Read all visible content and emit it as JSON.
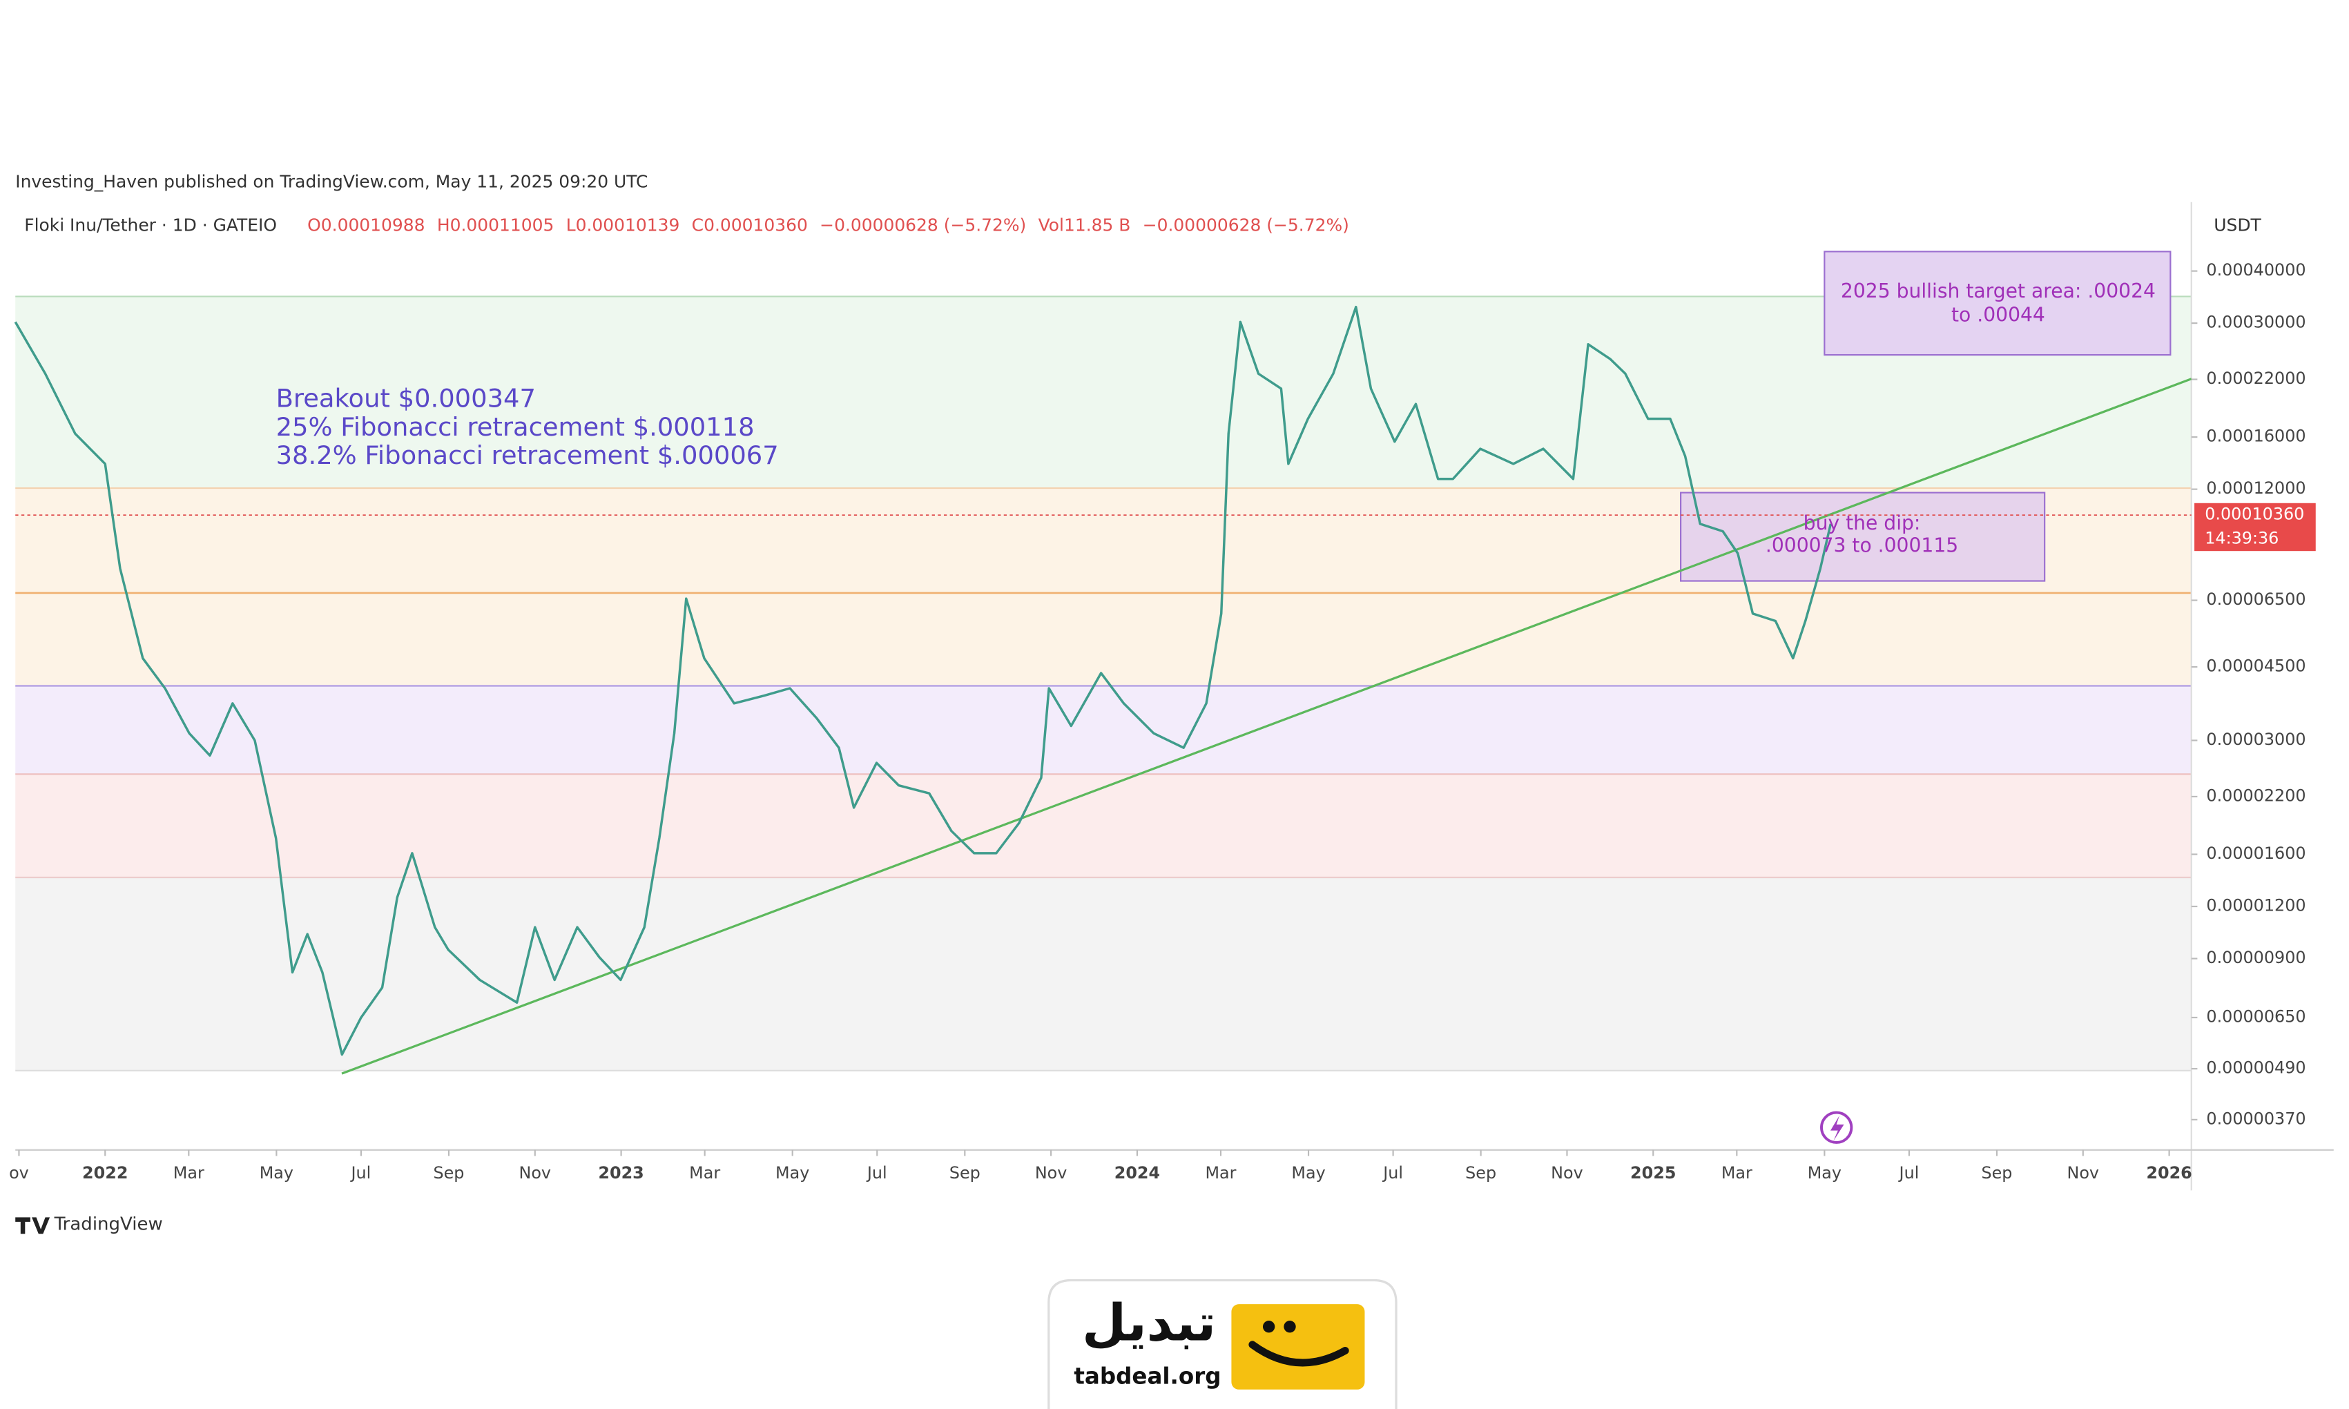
{
  "header": "Investing_Haven published on TradingView.com, May 11, 2025 09:20 UTC",
  "chart_data": {
    "type": "line",
    "symbol": "Floki Inu/Tether · 1D · GATEIO",
    "stats": [
      "O0.00010988",
      "H0.00011005",
      "L0.00010139",
      "C0.00010360",
      "−0.00000628 (−5.72%)",
      "Vol11.85 B",
      "−0.00000628 (−5.72%)"
    ],
    "y_unit": "USDT",
    "price_label": "0.00010360",
    "countdown": "14:39:36",
    "annotations": [
      "Breakout $0.000347",
      "25% Fibonacci retracement $.000118",
      "38.2% Fibonacci retracement $.000067"
    ],
    "target_box": [
      "2025 bullish target area: .00024",
      "to .00044"
    ],
    "dip_box": [
      "buy the dip:",
      ".000073 to .000115"
    ],
    "color": "#3f9c8c",
    "log_scale": true,
    "x": [
      2021.826,
      2021.884,
      2021.942,
      2022.0,
      2022.029,
      2022.073,
      2022.116,
      2022.163,
      2022.203,
      2022.247,
      2022.29,
      2022.331,
      2022.363,
      2022.392,
      2022.421,
      2022.459,
      2022.496,
      2022.537,
      2022.566,
      2022.595,
      2022.639,
      2022.665,
      2022.726,
      2022.798,
      2022.833,
      2022.871,
      2022.915,
      2022.958,
      2022.999,
      2023.045,
      2023.074,
      2023.103,
      2023.126,
      2023.161,
      2023.219,
      2023.277,
      2023.327,
      2023.379,
      2023.422,
      2023.451,
      2023.495,
      2023.538,
      2023.597,
      2023.64,
      2023.684,
      2023.727,
      2023.771,
      2023.814,
      2023.829,
      2023.872,
      2023.93,
      2023.974,
      2024.032,
      2024.09,
      2024.134,
      2024.163,
      2024.177,
      2024.2,
      2024.235,
      2024.279,
      2024.293,
      2024.331,
      2024.38,
      2024.424,
      2024.453,
      2024.499,
      2024.54,
      2024.583,
      2024.612,
      2024.665,
      2024.729,
      2024.787,
      2024.845,
      2024.874,
      2024.917,
      2024.946,
      2024.99,
      2025.033,
      2025.062,
      2025.091,
      2025.135,
      2025.164,
      2025.193,
      2025.237,
      2025.271,
      2025.295,
      2025.324,
      2025.344
    ],
    "values": [
      0.000302,
      0.000227,
      0.000163,
      0.000138,
      7.75e-05,
      4.72e-05,
      4e-05,
      3.12e-05,
      2.76e-05,
      3.68e-05,
      3e-05,
      1.75e-05,
      8.34e-06,
      1.03e-05,
      8.34e-06,
      5.3e-06,
      6.5e-06,
      7.67e-06,
      1.26e-05,
      1.61e-05,
      1.07e-05,
      9.45e-06,
      8e-06,
      7.06e-06,
      1.07e-05,
      8e-06,
      1.07e-05,
      9.06e-06,
      8e-06,
      1.07e-05,
      1.75e-05,
      3.12e-05,
      6.56e-05,
      4.72e-05,
      3.68e-05,
      3.84e-05,
      4e-05,
      3.39e-05,
      2.88e-05,
      2.07e-05,
      2.65e-05,
      2.34e-05,
      2.24e-05,
      1.82e-05,
      1.61e-05,
      1.61e-05,
      1.9e-05,
      2.44e-05,
      4e-05,
      3.25e-05,
      4.35e-05,
      3.68e-05,
      3.12e-05,
      2.88e-05,
      3.68e-05,
      6.04e-05,
      0.000163,
      0.000302,
      0.000227,
      0.000209,
      0.000138,
      0.000177,
      0.000227,
      0.000328,
      0.000209,
      0.000156,
      0.000192,
      0.000127,
      0.000127,
      0.00015,
      0.000138,
      0.00015,
      0.000127,
      0.000267,
      0.000246,
      0.000227,
      0.000177,
      0.000177,
      0.000144,
      9.91e-05,
      9.51e-05,
      8.42e-05,
      6.04e-05,
      5.8e-05,
      4.72e-05,
      5.8e-05,
      7.75e-05,
      9.91e-05
    ],
    "ylim": [
      3.13e-06,
      0.000585
    ],
    "yticks": [
      {
        "value": 0.0004,
        "label": "0.00040000"
      },
      {
        "value": 0.0003,
        "label": "0.00030000"
      },
      {
        "value": 0.00022,
        "label": "0.00022000"
      },
      {
        "value": 0.00016,
        "label": "0.00016000"
      },
      {
        "value": 0.00012,
        "label": "0.00012000"
      },
      {
        "value": 6.5e-05,
        "label": "0.00006500"
      },
      {
        "value": 4.5e-05,
        "label": "0.00004500"
      },
      {
        "value": 3e-05,
        "label": "0.00003000"
      },
      {
        "value": 2.2e-05,
        "label": "0.00002200"
      },
      {
        "value": 1.6e-05,
        "label": "0.00001600"
      },
      {
        "value": 1.2e-05,
        "label": "0.00001200"
      },
      {
        "value": 9e-06,
        "label": "0.00000900"
      },
      {
        "value": 6.5e-06,
        "label": "0.00000650"
      },
      {
        "value": 4.9e-06,
        "label": "0.00000490"
      },
      {
        "value": 3.7e-06,
        "label": "0.00000370"
      }
    ],
    "xlim": [
      2021.826,
      2026.043
    ],
    "xticks": [
      {
        "value": 2021.833,
        "label": "ov"
      },
      2022,
      {
        "value": 2022.162,
        "label": "Mar"
      },
      {
        "value": 2022.332,
        "label": "May"
      },
      {
        "value": 2022.496,
        "label": "Jul"
      },
      {
        "value": 2022.666,
        "label": "Sep"
      },
      {
        "value": 2022.833,
        "label": "Nov"
      },
      2023,
      {
        "value": 2023.162,
        "label": "Mar"
      },
      {
        "value": 2023.332,
        "label": "May"
      },
      {
        "value": 2023.496,
        "label": "Jul"
      },
      {
        "value": 2023.666,
        "label": "Sep"
      },
      {
        "value": 2023.833,
        "label": "Nov"
      },
      2024,
      {
        "value": 2024.162,
        "label": "Mar"
      },
      {
        "value": 2024.332,
        "label": "May"
      },
      {
        "value": 2024.496,
        "label": "Jul"
      },
      {
        "value": 2024.666,
        "label": "Sep"
      },
      {
        "value": 2024.833,
        "label": "Nov"
      },
      2025,
      {
        "value": 2025.162,
        "label": "Mar"
      },
      {
        "value": 2025.332,
        "label": "May"
      },
      {
        "value": 2025.496,
        "label": "Jul"
      },
      {
        "value": 2025.666,
        "label": "Sep"
      },
      {
        "value": 2025.833,
        "label": "Nov"
      },
      2026
    ]
  },
  "footer": {
    "brand": "TradingView",
    "logo_text": "تبدیل",
    "logo_url": "tabdeal.org"
  }
}
